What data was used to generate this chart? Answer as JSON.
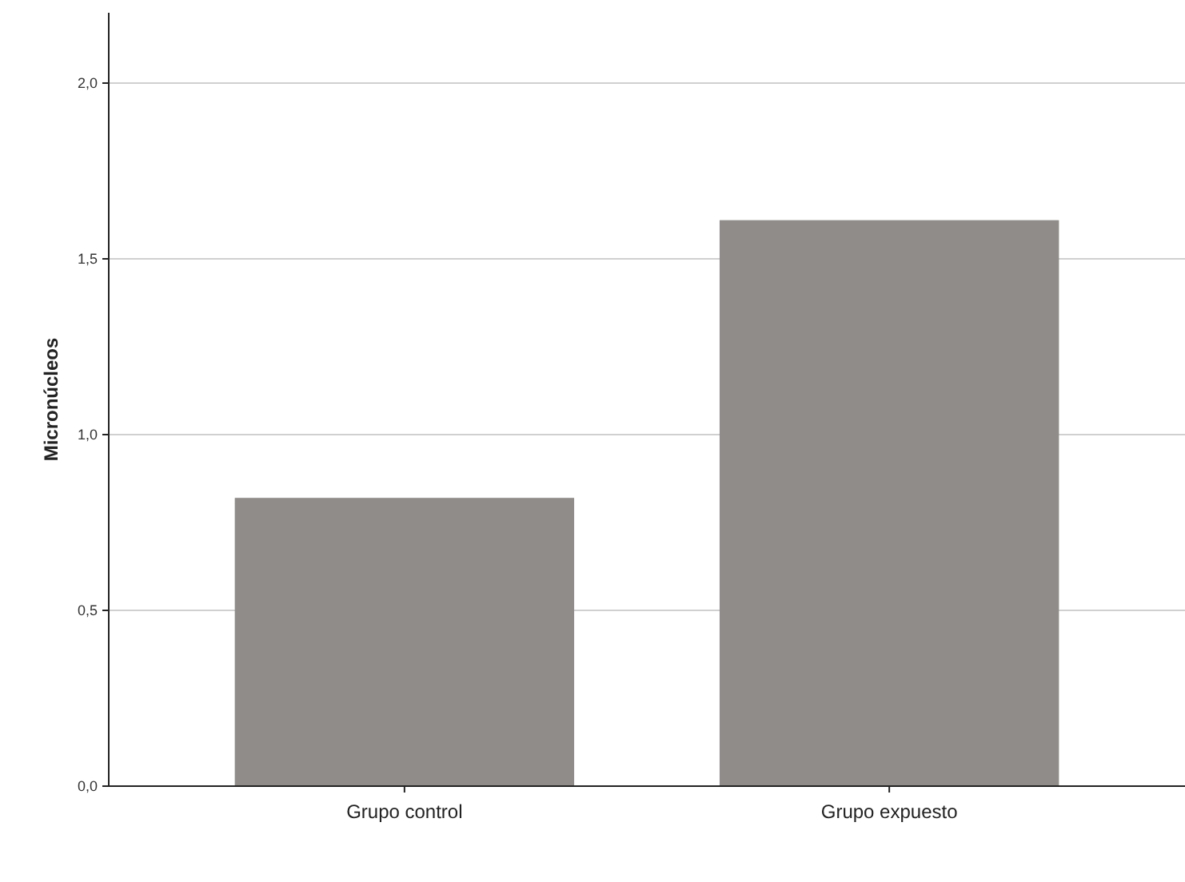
{
  "chart_data": {
    "type": "bar",
    "ylabel": "Micronúcleos",
    "categories": [
      "Grupo control",
      "Grupo expuesto"
    ],
    "values": [
      0.82,
      1.61
    ],
    "color": "#8f8c89",
    "ylim": [
      0,
      2.2
    ],
    "yticks": [
      {
        "value": 0,
        "label": "0,0"
      },
      {
        "value": 0.5,
        "label": "0,5"
      },
      {
        "value": 1,
        "label": "1,0"
      },
      {
        "value": 1.5,
        "label": "1,5"
      },
      {
        "value": 2,
        "label": "2,0"
      }
    ],
    "grid": "y"
  }
}
